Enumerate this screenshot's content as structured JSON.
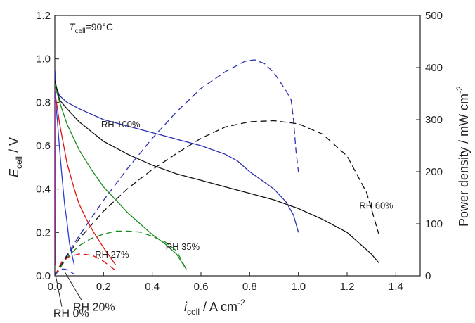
{
  "chart_data": {
    "type": "line",
    "xlabel_main": "i",
    "xlabel_sub": "cell",
    "xlabel_unit": " / A cm",
    "xlabel_exp": "-2",
    "ylabel_main": "E",
    "ylabel_sub": "cell",
    "ylabel_unit": " / V",
    "y2label": "Power density / mW cm",
    "y2label_exp": "-2",
    "condition_main": "T",
    "condition_sub": "cell",
    "condition_value": "=90°C",
    "xlim": [
      0,
      1.5
    ],
    "ylim": [
      0,
      1.2
    ],
    "y2lim": [
      0,
      500
    ],
    "x_ticks": [
      "0.0",
      "0.2",
      "0.4",
      "0.6",
      "0.8",
      "1.0",
      "1.2",
      "1.4"
    ],
    "y_ticks": [
      "0.0",
      "0.2",
      "0.4",
      "0.6",
      "0.8",
      "1.0",
      "1.2"
    ],
    "y2_ticks": [
      "0",
      "100",
      "200",
      "300",
      "400",
      "500"
    ],
    "series": [
      {
        "name": "RH 100%",
        "color": "#2a2fb0",
        "polarization": [
          [
            0.0,
            0.95
          ],
          [
            0.005,
            0.87
          ],
          [
            0.02,
            0.83
          ],
          [
            0.05,
            0.8
          ],
          [
            0.1,
            0.77
          ],
          [
            0.2,
            0.72
          ],
          [
            0.3,
            0.69
          ],
          [
            0.4,
            0.66
          ],
          [
            0.5,
            0.63
          ],
          [
            0.6,
            0.6
          ],
          [
            0.7,
            0.56
          ],
          [
            0.75,
            0.53
          ],
          [
            0.8,
            0.48
          ],
          [
            0.85,
            0.44
          ],
          [
            0.9,
            0.4
          ],
          [
            0.95,
            0.34
          ],
          [
            0.98,
            0.28
          ],
          [
            1.0,
            0.2
          ]
        ],
        "power": [
          [
            0.0,
            0
          ],
          [
            0.05,
            40
          ],
          [
            0.1,
            77
          ],
          [
            0.2,
            145
          ],
          [
            0.3,
            207
          ],
          [
            0.4,
            264
          ],
          [
            0.5,
            315
          ],
          [
            0.6,
            360
          ],
          [
            0.7,
            392
          ],
          [
            0.78,
            412
          ],
          [
            0.82,
            415
          ],
          [
            0.86,
            408
          ],
          [
            0.9,
            390
          ],
          [
            0.95,
            355
          ],
          [
            0.97,
            338
          ],
          [
            0.98,
            300
          ],
          [
            0.99,
            240
          ],
          [
            1.0,
            200
          ]
        ]
      },
      {
        "name": "RH 60%",
        "color": "#111111",
        "polarization": [
          [
            0.0,
            0.9
          ],
          [
            0.02,
            0.81
          ],
          [
            0.05,
            0.77
          ],
          [
            0.1,
            0.71
          ],
          [
            0.2,
            0.62
          ],
          [
            0.3,
            0.56
          ],
          [
            0.4,
            0.51
          ],
          [
            0.5,
            0.47
          ],
          [
            0.6,
            0.44
          ],
          [
            0.7,
            0.41
          ],
          [
            0.8,
            0.38
          ],
          [
            0.9,
            0.35
          ],
          [
            1.0,
            0.31
          ],
          [
            1.1,
            0.26
          ],
          [
            1.2,
            0.2
          ],
          [
            1.3,
            0.1
          ],
          [
            1.33,
            0.06
          ]
        ],
        "power": [
          [
            0.0,
            0
          ],
          [
            0.05,
            38
          ],
          [
            0.1,
            71
          ],
          [
            0.2,
            124
          ],
          [
            0.3,
            168
          ],
          [
            0.4,
            204
          ],
          [
            0.5,
            235
          ],
          [
            0.6,
            264
          ],
          [
            0.7,
            286
          ],
          [
            0.8,
            296
          ],
          [
            0.9,
            298
          ],
          [
            1.0,
            292
          ],
          [
            1.1,
            272
          ],
          [
            1.2,
            230
          ],
          [
            1.28,
            160
          ],
          [
            1.33,
            80
          ]
        ]
      },
      {
        "name": "RH 35%",
        "color": "#1a8a1a",
        "polarization": [
          [
            0.0,
            0.88
          ],
          [
            0.02,
            0.8
          ],
          [
            0.05,
            0.7
          ],
          [
            0.1,
            0.58
          ],
          [
            0.15,
            0.49
          ],
          [
            0.2,
            0.41
          ],
          [
            0.25,
            0.35
          ],
          [
            0.3,
            0.29
          ],
          [
            0.35,
            0.24
          ],
          [
            0.4,
            0.19
          ],
          [
            0.45,
            0.15
          ],
          [
            0.5,
            0.1
          ],
          [
            0.54,
            0.03
          ]
        ],
        "power": [
          [
            0.0,
            0
          ],
          [
            0.05,
            35
          ],
          [
            0.1,
            58
          ],
          [
            0.15,
            72
          ],
          [
            0.2,
            80
          ],
          [
            0.25,
            86
          ],
          [
            0.3,
            86
          ],
          [
            0.35,
            84
          ],
          [
            0.4,
            76
          ],
          [
            0.45,
            66
          ],
          [
            0.5,
            48
          ],
          [
            0.54,
            12
          ]
        ]
      },
      {
        "name": "RH 27%",
        "color": "#e01010",
        "polarization": [
          [
            0.0,
            0.85
          ],
          [
            0.02,
            0.7
          ],
          [
            0.05,
            0.52
          ],
          [
            0.08,
            0.4
          ],
          [
            0.1,
            0.33
          ],
          [
            0.13,
            0.26
          ],
          [
            0.16,
            0.2
          ],
          [
            0.2,
            0.13
          ],
          [
            0.25,
            0.05
          ]
        ],
        "power": [
          [
            0.0,
            0
          ],
          [
            0.03,
            28
          ],
          [
            0.06,
            37
          ],
          [
            0.1,
            42
          ],
          [
            0.13,
            41
          ],
          [
            0.16,
            38
          ],
          [
            0.2,
            28
          ],
          [
            0.25,
            10
          ]
        ]
      },
      {
        "name": "RH 20%",
        "color": "#2a3cd8",
        "polarization": [
          [
            0.0,
            0.85
          ],
          [
            0.01,
            0.72
          ],
          [
            0.02,
            0.58
          ],
          [
            0.03,
            0.45
          ],
          [
            0.04,
            0.33
          ],
          [
            0.05,
            0.25
          ],
          [
            0.06,
            0.15
          ],
          [
            0.08,
            0.05
          ]
        ],
        "power": [
          [
            0.0,
            0
          ],
          [
            0.01,
            7
          ],
          [
            0.02,
            11
          ],
          [
            0.03,
            13
          ],
          [
            0.04,
            13
          ],
          [
            0.05,
            12
          ],
          [
            0.06,
            9
          ],
          [
            0.08,
            3
          ]
        ]
      },
      {
        "name": "RH 0%",
        "color": "#b01ab0",
        "polarization": [
          [
            0.0,
            0.85
          ],
          [
            0.001,
            0.6
          ],
          [
            0.002,
            0.3
          ],
          [
            0.003,
            0.05
          ]
        ],
        "power": [
          [
            0.0,
            0
          ],
          [
            0.001,
            1
          ],
          [
            0.002,
            1
          ],
          [
            0.003,
            0
          ]
        ]
      }
    ],
    "annotations": [
      {
        "text": "RH 100%",
        "series": 0,
        "x": 0.19,
        "y": 0.685,
        "size": "small"
      },
      {
        "text": "RH 60%",
        "series": 1,
        "x": 1.25,
        "y": 0.31,
        "size": "small"
      },
      {
        "text": "RH 35%",
        "series": 2,
        "x": 0.455,
        "y": 0.12,
        "size": "small"
      },
      {
        "text": "RH 27%",
        "series": 3,
        "x": 0.165,
        "y": 0.085,
        "size": "small"
      }
    ],
    "callouts": [
      {
        "text": "RH 0%",
        "series": 5,
        "x": -0.006,
        "y": -0.19,
        "px": 0.0,
        "py": 0.02,
        "size": "big"
      },
      {
        "text": "RH 20%",
        "series": 4,
        "x": 0.075,
        "y": -0.16,
        "px": 0.04,
        "py": 0.02,
        "size": "big"
      }
    ]
  }
}
